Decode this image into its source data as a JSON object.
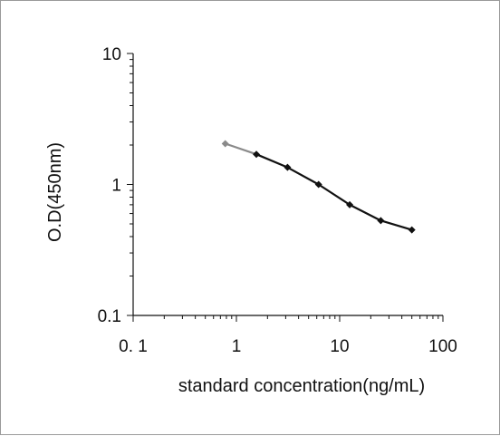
{
  "chart_data": {
    "type": "line",
    "title": "",
    "xlabel": "standard concentration(ng/mL)",
    "ylabel": "O.D(450nm)",
    "x_scale": "log",
    "y_scale": "log",
    "xlim": [
      0.1,
      100
    ],
    "ylim": [
      0.1,
      10
    ],
    "x_ticks": [
      {
        "value": 0.1,
        "label": "0. 1"
      },
      {
        "value": 1,
        "label": "1"
      },
      {
        "value": 10,
        "label": "10"
      },
      {
        "value": 100,
        "label": "100"
      }
    ],
    "y_ticks": [
      {
        "value": 0.1,
        "label": "0.1"
      },
      {
        "value": 1,
        "label": "1"
      },
      {
        "value": 10,
        "label": "10"
      }
    ],
    "grid": false,
    "legend": "none",
    "line_color": "#111111",
    "first_segment_color": "#8a8a8a",
    "series": [
      {
        "x": [
          0.78,
          1.56,
          3.125,
          6.25,
          12.5,
          25,
          50
        ],
        "y": [
          2.05,
          1.7,
          1.35,
          1.0,
          0.7,
          0.53,
          0.45
        ]
      }
    ]
  }
}
